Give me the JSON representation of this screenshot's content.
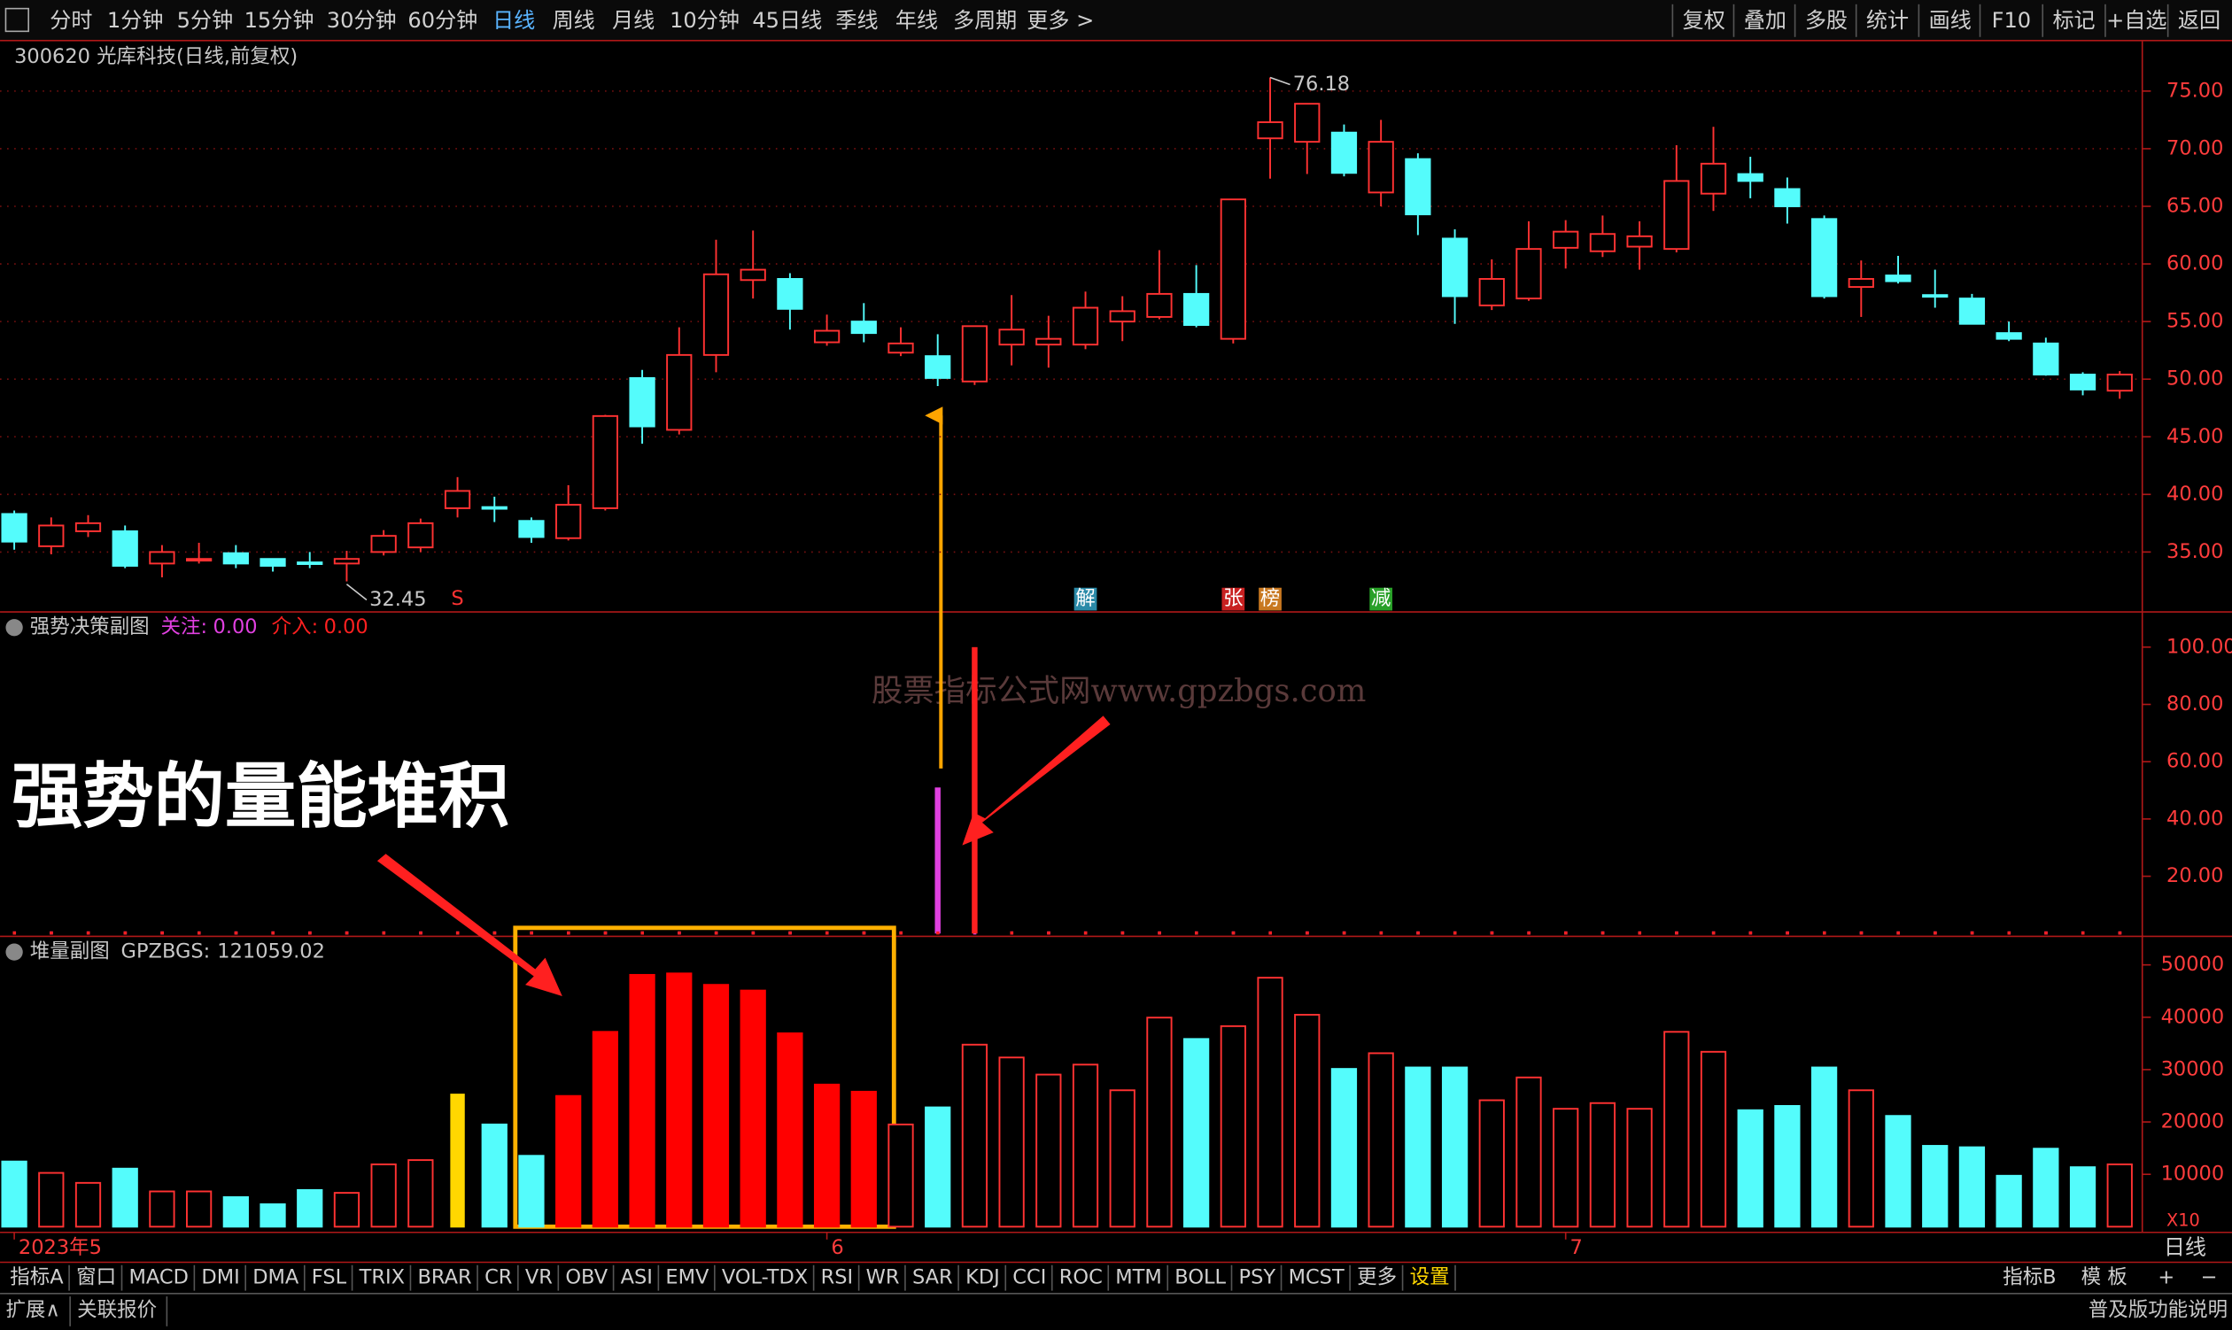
{
  "toolbar": {
    "left": [
      "分时",
      "1分钟",
      "5分钟",
      "15分钟",
      "30分钟",
      "60分钟",
      "日线",
      "周线",
      "月线",
      "10分钟",
      "45日线",
      "季线",
      "年线",
      "多周期",
      "更多 >"
    ],
    "active_index": 6,
    "right": [
      "复权",
      "叠加",
      "多股",
      "统计",
      "画线",
      "F10",
      "标记",
      "+自选",
      "返回"
    ]
  },
  "annotations": {
    "headline": "强势的量能堆积",
    "watermark": "股票指标公式网www.gpzbgs.com"
  },
  "chart_data": [
    {
      "type": "candlestick",
      "title": "300620 光库科技(日线,前复权)",
      "up_color": "#ff3232",
      "down_color": "#54fcfc",
      "categories": [
        "2023年5",
        null,
        null,
        null,
        null,
        null,
        null,
        null,
        null,
        null,
        null,
        null,
        null,
        null,
        null,
        null,
        null,
        null,
        null,
        null,
        null,
        null,
        "6",
        null,
        null,
        null,
        null,
        null,
        null,
        null,
        null,
        null,
        null,
        null,
        null,
        null,
        null,
        null,
        null,
        null,
        null,
        null,
        "7",
        null,
        null,
        null,
        null,
        null,
        null,
        null,
        null,
        null,
        null,
        null,
        null,
        null,
        null,
        null
      ],
      "period_label": "日线",
      "open": [
        38.3,
        35.5,
        36.8,
        36.8,
        34.0,
        34.3,
        34.9,
        34.4,
        34.1,
        34.0,
        35.0,
        35.4,
        38.8,
        38.9,
        37.7,
        36.2,
        38.8,
        50.1,
        45.6,
        52.1,
        58.6,
        58.7,
        53.2,
        55.0,
        52.3,
        52.0,
        49.8,
        53.0,
        53.0,
        53.0,
        55.0,
        55.4,
        57.4,
        53.5,
        70.9,
        70.6,
        71.4,
        66.2,
        69.1,
        62.2,
        56.4,
        57.0,
        61.4,
        61.1,
        61.5,
        61.3,
        66.1,
        67.8,
        66.5,
        63.9,
        58.0,
        59.0,
        57.3,
        57.0,
        54.0,
        53.1,
        50.4,
        49.0
      ],
      "high": [
        38.6,
        38.0,
        38.2,
        37.3,
        35.6,
        35.8,
        35.6,
        34.4,
        35.0,
        35.1,
        36.9,
        37.9,
        41.5,
        39.8,
        38.0,
        40.8,
        46.9,
        50.8,
        54.5,
        62.1,
        62.9,
        59.2,
        55.6,
        56.6,
        54.5,
        53.9,
        54.6,
        57.3,
        55.5,
        57.6,
        57.2,
        61.2,
        59.9,
        65.6,
        76.18,
        73.9,
        72.1,
        72.5,
        69.6,
        63.0,
        60.4,
        63.7,
        63.8,
        64.2,
        63.7,
        70.3,
        71.9,
        69.3,
        67.5,
        64.2,
        60.3,
        60.7,
        59.5,
        57.4,
        55.0,
        53.6,
        50.6,
        50.7
      ],
      "low": [
        35.2,
        34.8,
        36.3,
        33.6,
        32.8,
        34.0,
        33.6,
        33.3,
        33.6,
        32.45,
        34.7,
        35.0,
        38.0,
        37.6,
        35.8,
        36.0,
        38.6,
        44.4,
        45.2,
        50.6,
        57.0,
        54.3,
        52.9,
        53.2,
        52.0,
        49.4,
        49.5,
        51.2,
        51.0,
        52.6,
        53.3,
        55.2,
        54.5,
        53.1,
        67.4,
        67.8,
        67.6,
        65.0,
        62.5,
        54.8,
        56.0,
        56.8,
        59.6,
        60.6,
        59.5,
        61.0,
        64.6,
        65.7,
        63.5,
        57.0,
        55.4,
        58.3,
        56.2,
        54.8,
        53.3,
        50.3,
        48.6,
        48.3
      ],
      "close": [
        35.9,
        37.3,
        37.5,
        33.8,
        35.0,
        34.4,
        34.0,
        33.8,
        34.0,
        34.4,
        36.4,
        37.5,
        40.3,
        38.8,
        36.3,
        39.1,
        46.8,
        45.9,
        52.1,
        59.1,
        59.5,
        56.1,
        54.2,
        54.0,
        53.1,
        50.1,
        54.6,
        54.3,
        53.5,
        56.2,
        55.9,
        57.4,
        54.7,
        65.6,
        72.3,
        73.9,
        67.9,
        70.6,
        64.3,
        57.2,
        58.7,
        61.3,
        62.8,
        62.6,
        62.4,
        67.2,
        68.7,
        67.2,
        65.0,
        57.2,
        58.7,
        58.5,
        57.2,
        54.8,
        53.5,
        50.4,
        49.1,
        50.4
      ],
      "ylim": [
        29.8,
        79.2
      ],
      "yticks": [
        {
          "value": 35,
          "label": "35.00"
        },
        {
          "value": 40,
          "label": "40.00"
        },
        {
          "value": 45,
          "label": "45.00"
        },
        {
          "value": 50,
          "label": "50.00"
        },
        {
          "value": 55,
          "label": "55.00"
        },
        {
          "value": 60,
          "label": "60.00"
        },
        {
          "value": 65,
          "label": "65.00"
        },
        {
          "value": 70,
          "label": "70.00"
        },
        {
          "value": 75,
          "label": "75.00"
        }
      ],
      "grid": true,
      "markers": [
        {
          "index": 12,
          "label": "S",
          "color": "#ff3232"
        },
        {
          "index": 29,
          "label": "解",
          "color": "#2a8aa8"
        },
        {
          "index": 33,
          "label": "张",
          "color": "#c82020"
        },
        {
          "index": 34,
          "label": "榜",
          "color": "#c87820"
        },
        {
          "index": 37,
          "label": "减",
          "color": "#28a028"
        }
      ]
    },
    {
      "type": "bar",
      "title": "强势决策副图",
      "series": [
        {
          "name": "关注:",
          "readout": "0.00",
          "color": "#e040e0",
          "values": [
            0,
            0,
            0,
            0,
            0,
            0,
            0,
            0,
            0,
            0,
            0,
            0,
            0,
            0,
            0,
            0,
            0,
            0,
            0,
            0,
            0,
            0,
            0,
            0,
            0,
            51,
            0,
            0,
            0,
            0,
            0,
            0,
            0,
            0,
            0,
            0,
            0,
            0,
            0,
            0,
            0,
            0,
            0,
            0,
            0,
            0,
            0,
            0,
            0,
            0,
            0,
            0,
            0,
            0,
            0,
            0,
            0,
            0
          ]
        },
        {
          "name": "介入:",
          "readout": "0.00",
          "color": "#ff2020",
          "values": [
            0,
            0,
            0,
            0,
            0,
            0,
            0,
            0,
            0,
            0,
            0,
            0,
            0,
            0,
            0,
            0,
            0,
            0,
            0,
            0,
            0,
            0,
            0,
            0,
            0,
            0,
            100,
            0,
            0,
            0,
            0,
            0,
            0,
            0,
            0,
            0,
            0,
            0,
            0,
            0,
            0,
            0,
            0,
            0,
            0,
            0,
            0,
            0,
            0,
            0,
            0,
            0,
            0,
            0,
            0,
            0,
            0,
            0
          ]
        }
      ],
      "ylim": [
        0,
        111.3
      ],
      "yticks": [
        {
          "value": 20,
          "label": "20.00"
        },
        {
          "value": 40,
          "label": "40.00"
        },
        {
          "value": 60,
          "label": "60.00"
        },
        {
          "value": 80,
          "label": "80.00"
        },
        {
          "value": 100,
          "label": "100.00"
        }
      ]
    },
    {
      "type": "bar",
      "title": "堆量副图",
      "unit_label": "X10",
      "hollow_color": "#ff3232",
      "series": [
        {
          "name": "GPZBGS:",
          "readout": 121059.02,
          "values": [
            12449,
            10272,
            8367,
            11088,
            6735,
            6735,
            5646,
            4286,
            7007,
            6463,
            11905,
            12721,
            25238,
            19524,
            13537,
            24966,
            37211,
            48095,
            48367,
            46190,
            45102,
            36939,
            27143,
            25782,
            19524,
            22789,
            34762,
            32313,
            29048,
            30952,
            26054,
            39932,
            35850,
            38299,
            47551,
            40476,
            30136,
            33129,
            30408,
            30408,
            24150,
            28503,
            22517,
            23605,
            22517,
            37211,
            33401,
            22245,
            23061,
            30408,
            26054,
            21156,
            15442,
            15170,
            9728,
            14898,
            11361,
            11905
          ],
          "colors": [
            "#54fcfc",
            "#ff3232",
            "#ff3232",
            "#54fcfc",
            "#ff3232",
            "#ff3232",
            "#54fcfc",
            "#54fcfc",
            "#54fcfc",
            "#ff3232",
            "#ff3232",
            "#ff3232",
            "#ffd700",
            "#54fcfc",
            "#54fcfc",
            "#ff0000",
            "#ff0000",
            "#ff0000",
            "#ff0000",
            "#ff0000",
            "#ff0000",
            "#ff0000",
            "#ff0000",
            "#ff0000",
            "#ff3232",
            "#54fcfc",
            "#ff3232",
            "#ff3232",
            "#ff3232",
            "#ff3232",
            "#ff3232",
            "#ff3232",
            "#54fcfc",
            "#ff3232",
            "#ff3232",
            "#ff3232",
            "#54fcfc",
            "#ff3232",
            "#54fcfc",
            "#54fcfc",
            "#ff3232",
            "#ff3232",
            "#ff3232",
            "#ff3232",
            "#ff3232",
            "#ff3232",
            "#ff3232",
            "#54fcfc",
            "#54fcfc",
            "#54fcfc",
            "#ff3232",
            "#54fcfc",
            "#54fcfc",
            "#54fcfc",
            "#54fcfc",
            "#54fcfc",
            "#54fcfc",
            "#ff3232"
          ]
        }
      ],
      "ylim": [
        0,
        54900
      ],
      "yticks": [
        10000,
        20000,
        30000,
        40000,
        50000
      ]
    }
  ],
  "tabs": {
    "left": [
      "指标A",
      "窗口",
      "MACD",
      "DMI",
      "DMA",
      "FSL",
      "TRIX",
      "BRAR",
      "CR",
      "VR",
      "OBV",
      "ASI",
      "EMV",
      "VOL-TDX",
      "RSI",
      "WR",
      "SAR",
      "KDJ",
      "CCI",
      "ROC",
      "MTM",
      "BOLL",
      "PSY",
      "MCST",
      "更多",
      "设置"
    ],
    "right": [
      "指标B",
      "模 板",
      "+",
      "−"
    ]
  },
  "status": {
    "left": [
      "扩展∧",
      "关联报价"
    ],
    "right": "普及版功能说明"
  }
}
